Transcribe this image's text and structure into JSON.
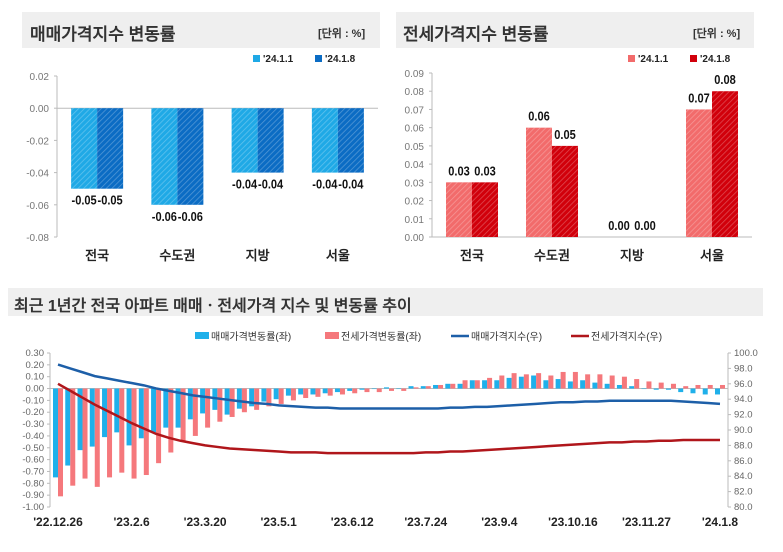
{
  "chart_data": [
    {
      "type": "bar",
      "title": "매매가격지수 변동률",
      "unit": "[단위 : %]",
      "categories": [
        "전국",
        "수도권",
        "지방",
        "서울"
      ],
      "series": [
        {
          "name": "'24.1.1",
          "values": [
            -0.05,
            -0.06,
            -0.04,
            -0.04
          ],
          "color": "#1fa9e6"
        },
        {
          "name": "'24.1.8",
          "values": [
            -0.05,
            -0.06,
            -0.04,
            -0.04
          ],
          "color": "#0b6cc4"
        }
      ],
      "data_labels": [
        [
          "-0.05",
          "-0.05"
        ],
        [
          "-0.06",
          "-0.06"
        ],
        [
          "-0.04",
          "-0.04"
        ],
        [
          "-0.04",
          "-0.04"
        ]
      ],
      "ylim": [
        -0.08,
        0.02
      ],
      "yticks": [
        "0.02",
        "0.00",
        "-0.02",
        "-0.04",
        "-0.06",
        "-0.08"
      ],
      "legend": "top-right"
    },
    {
      "type": "bar",
      "title": "전세가격지수 변동률",
      "unit": "[단위 : %]",
      "categories": [
        "전국",
        "수도권",
        "지방",
        "서울"
      ],
      "series": [
        {
          "name": "'24.1.1",
          "values": [
            0.03,
            0.06,
            0.0,
            0.07
          ],
          "color": "#f26b6b"
        },
        {
          "name": "'24.1.8",
          "values": [
            0.03,
            0.05,
            0.0,
            0.08
          ],
          "color": "#d1000b"
        }
      ],
      "data_labels": [
        [
          "0.03",
          "0.03"
        ],
        [
          "0.06",
          "0.05"
        ],
        [
          "0.00",
          "0.00"
        ],
        [
          "0.07",
          "0.08"
        ]
      ],
      "ylim": [
        0,
        0.09
      ],
      "yticks": [
        "0.09",
        "0.08",
        "0.07",
        "0.06",
        "0.05",
        "0.04",
        "0.03",
        "0.02",
        "0.01",
        "0.00"
      ],
      "legend": "top-right"
    },
    {
      "type": "bar+line",
      "title": "최근 1년간 전국 아파트 매매ㆍ전세가격 지수 및 변동률 추이",
      "xticks": [
        "'22.12.26",
        "'23.2.6",
        "'23.3.20",
        "'23.5.1",
        "'23.6.12",
        "'23.7.24",
        "'23.9.4",
        "'23.10.16",
        "'23.11.27",
        "'24.1.8"
      ],
      "y_left": {
        "lim": [
          -1.0,
          0.3
        ],
        "ticks": [
          "0.30",
          "0.20",
          "0.10",
          "0.00",
          "-0.10",
          "-0.20",
          "-0.30",
          "-0.40",
          "-0.50",
          "-0.60",
          "-0.70",
          "-0.80",
          "-0.90",
          "-1.00"
        ]
      },
      "y_right": {
        "lim": [
          80,
          100
        ],
        "ticks": [
          "100.0",
          "98.0",
          "96.0",
          "94.0",
          "92.0",
          "90.0",
          "88.0",
          "86.0",
          "84.0",
          "82.0",
          "80.0"
        ]
      },
      "legend": "top",
      "series": [
        {
          "name": "매매가격변동률(좌)",
          "type": "bar",
          "axis": "left",
          "color": "#1fb0ea",
          "values": [
            -0.75,
            -0.65,
            -0.52,
            -0.49,
            -0.41,
            -0.37,
            -0.48,
            -0.42,
            -0.37,
            -0.33,
            -0.33,
            -0.26,
            -0.21,
            -0.18,
            -0.22,
            -0.17,
            -0.15,
            -0.11,
            -0.09,
            -0.06,
            -0.05,
            -0.05,
            -0.04,
            -0.03,
            -0.02,
            -0.01,
            0.0,
            0.01,
            0.0,
            0.02,
            0.02,
            0.03,
            0.04,
            0.04,
            0.07,
            0.07,
            0.07,
            0.09,
            0.1,
            0.11,
            0.07,
            0.08,
            0.06,
            0.07,
            0.05,
            0.04,
            0.03,
            0.02,
            0.0,
            -0.01,
            -0.01,
            -0.03,
            -0.04,
            -0.05,
            -0.05
          ]
        },
        {
          "name": "전세가격변동률(좌)",
          "type": "bar",
          "axis": "left",
          "color": "#f5787c",
          "values": [
            -0.91,
            -0.82,
            -0.76,
            -0.83,
            -0.75,
            -0.71,
            -0.76,
            -0.73,
            -0.63,
            -0.54,
            -0.44,
            -0.4,
            -0.33,
            -0.28,
            -0.24,
            -0.2,
            -0.18,
            -0.15,
            -0.13,
            -0.1,
            -0.08,
            -0.07,
            -0.06,
            -0.05,
            -0.04,
            -0.03,
            -0.03,
            -0.02,
            -0.02,
            0.01,
            0.02,
            0.03,
            0.04,
            0.07,
            0.07,
            0.09,
            0.11,
            0.13,
            0.12,
            0.13,
            0.11,
            0.14,
            0.14,
            0.12,
            0.12,
            0.11,
            0.1,
            0.08,
            0.06,
            0.05,
            0.04,
            0.02,
            0.03,
            0.03,
            0.03
          ]
        },
        {
          "name": "매매가격지수(우)",
          "type": "line",
          "axis": "right",
          "color": "#1d5fa8",
          "values": [
            98.5,
            98.0,
            97.5,
            97.0,
            96.7,
            96.4,
            96.1,
            95.8,
            95.4,
            95.1,
            94.8,
            94.5,
            94.3,
            94.1,
            93.9,
            93.7,
            93.5,
            93.4,
            93.2,
            93.1,
            93.0,
            92.9,
            92.9,
            92.8,
            92.8,
            92.8,
            92.8,
            92.8,
            92.8,
            92.8,
            92.8,
            92.8,
            92.9,
            92.9,
            93.0,
            93.0,
            93.1,
            93.2,
            93.3,
            93.4,
            93.5,
            93.6,
            93.6,
            93.7,
            93.7,
            93.8,
            93.8,
            93.8,
            93.8,
            93.8,
            93.8,
            93.7,
            93.6,
            93.5,
            93.4
          ]
        },
        {
          "name": "전세가격지수(우)",
          "type": "line",
          "axis": "right",
          "color": "#b0161b",
          "values": [
            96.0,
            95.1,
            94.2,
            93.3,
            92.5,
            91.7,
            90.9,
            90.2,
            89.5,
            89.0,
            88.6,
            88.3,
            88.0,
            87.8,
            87.6,
            87.5,
            87.4,
            87.3,
            87.2,
            87.1,
            87.1,
            87.1,
            87.0,
            87.0,
            87.0,
            87.0,
            87.0,
            87.0,
            87.0,
            87.0,
            87.1,
            87.1,
            87.2,
            87.2,
            87.3,
            87.4,
            87.5,
            87.6,
            87.7,
            87.8,
            87.9,
            88.0,
            88.1,
            88.2,
            88.3,
            88.4,
            88.4,
            88.5,
            88.5,
            88.6,
            88.6,
            88.7,
            88.7,
            88.7,
            88.7
          ]
        }
      ]
    }
  ]
}
